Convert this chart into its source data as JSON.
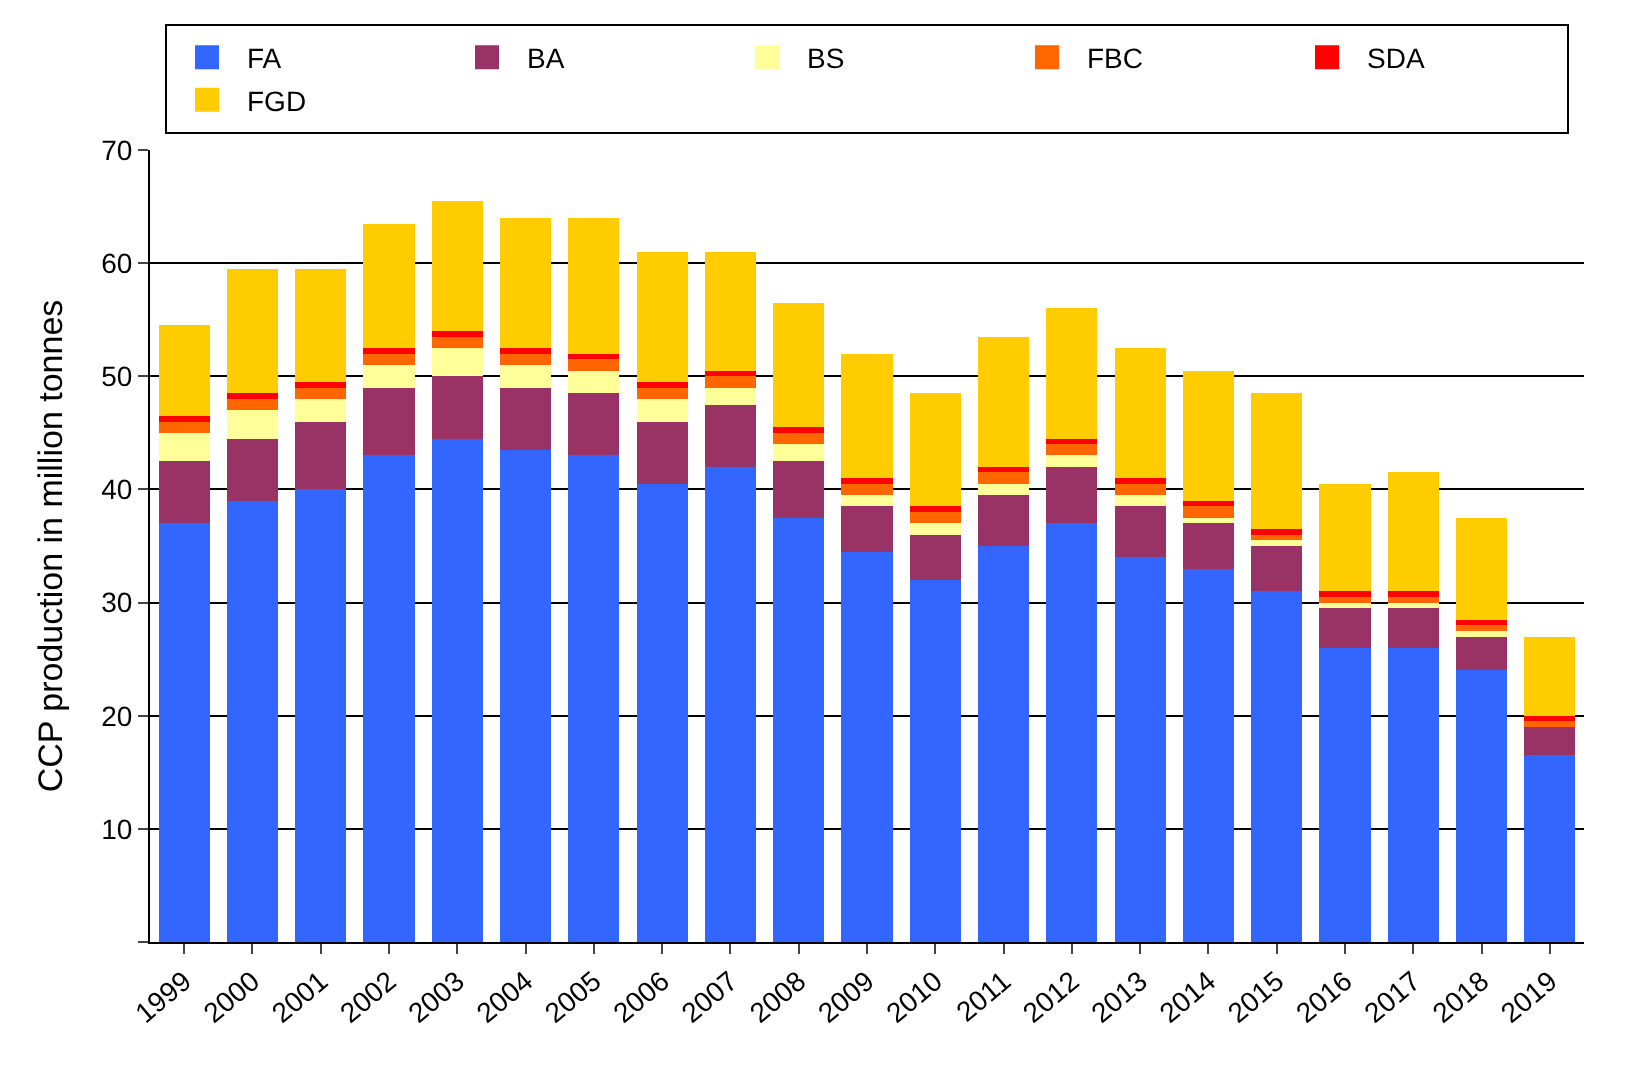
{
  "chart_data": {
    "type": "bar",
    "stacked": true,
    "ylabel": "CCP production in million tonnes",
    "categories": [
      "1999",
      "2000",
      "2001",
      "2002",
      "2003",
      "2004",
      "2005",
      "2006",
      "2007",
      "2008",
      "2009",
      "2010",
      "2011",
      "2012",
      "2013",
      "2014",
      "2015",
      "2016",
      "2017",
      "2018",
      "2019"
    ],
    "series": [
      {
        "name": "FA",
        "color": "#3366ff",
        "values": [
          37,
          39,
          40,
          43,
          44.5,
          43.5,
          43,
          40.5,
          42,
          37.5,
          34.5,
          32,
          35,
          37,
          34,
          33,
          31,
          26,
          26,
          24,
          16.5
        ]
      },
      {
        "name": "BA",
        "color": "#993366",
        "values": [
          5.5,
          5.5,
          6,
          6,
          5.5,
          5.5,
          5.5,
          5.5,
          5.5,
          5,
          4,
          4,
          4.5,
          5,
          4.5,
          4,
          4,
          3.5,
          3.5,
          3,
          2.5
        ]
      },
      {
        "name": "BS",
        "color": "#ffff99",
        "values": [
          2.5,
          2.5,
          2,
          2,
          2.5,
          2,
          2,
          2,
          1.5,
          1.5,
          1,
          1,
          1,
          1,
          1,
          0.5,
          0.5,
          0.5,
          0.5,
          0.5,
          0
        ]
      },
      {
        "name": "FBC",
        "color": "#ff6600",
        "values": [
          1,
          1,
          1,
          1,
          1,
          1,
          1,
          1,
          1,
          1,
          1,
          1,
          1,
          1,
          1,
          1,
          0.5,
          0.5,
          0.5,
          0.5,
          0.5
        ]
      },
      {
        "name": "SDA",
        "color": "#ff0000",
        "values": [
          0.5,
          0.5,
          0.5,
          0.5,
          0.5,
          0.5,
          0.5,
          0.5,
          0.5,
          0.5,
          0.5,
          0.5,
          0.5,
          0.5,
          0.5,
          0.5,
          0.5,
          0.5,
          0.5,
          0.5,
          0.5
        ]
      },
      {
        "name": "FGD",
        "color": "#ffcc00",
        "values": [
          8,
          11,
          10,
          11,
          11.5,
          11.5,
          12,
          11.5,
          10.5,
          11,
          11,
          10,
          11.5,
          11.5,
          11.5,
          11.5,
          12,
          9.5,
          10.5,
          9,
          7
        ]
      }
    ],
    "ylim": [
      0,
      70
    ],
    "yticks": [
      {
        "value": 0,
        "label": null
      },
      10,
      20,
      30,
      40,
      50,
      60,
      70
    ],
    "grid": "y",
    "legend": "top"
  }
}
